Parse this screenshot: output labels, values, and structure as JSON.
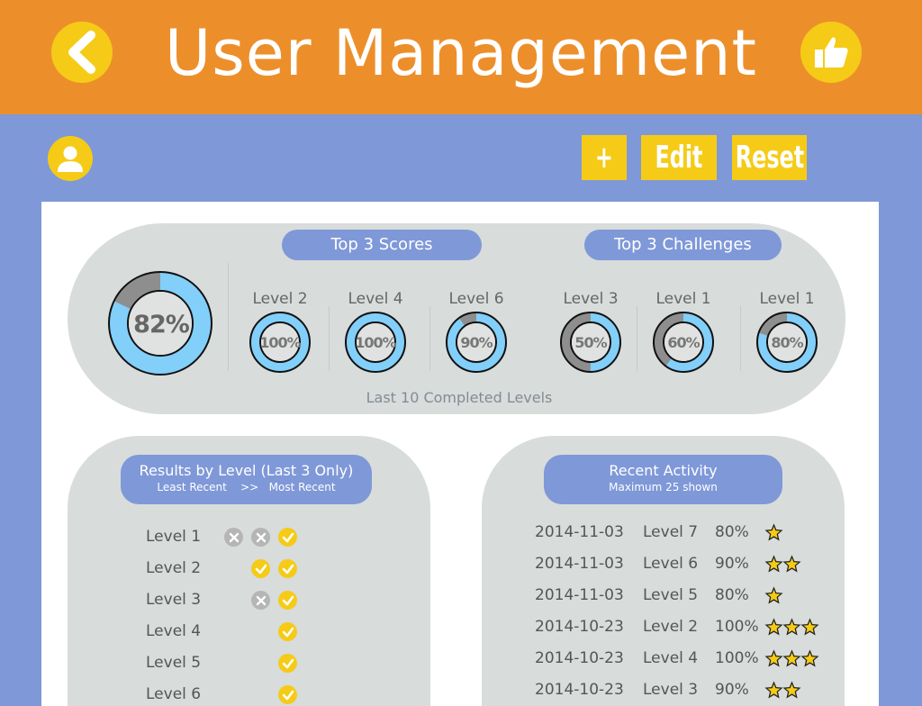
{
  "header": {
    "title": "User Management"
  },
  "toolbar": {
    "add_label": "+",
    "edit_label": "Edit",
    "reset_label": "Reset"
  },
  "summary": {
    "overall": {
      "label": "82%",
      "percent": 82
    },
    "top_scores_title": "Top 3 Scores",
    "top_challenges_title": "Top 3 Challenges",
    "top_scores": [
      {
        "level": "Level 2",
        "label": "100%",
        "percent": 100
      },
      {
        "level": "Level 4",
        "label": "100%",
        "percent": 100
      },
      {
        "level": "Level 6",
        "label": "90%",
        "percent": 90
      }
    ],
    "top_challenges": [
      {
        "level": "Level 3",
        "label": "50%",
        "percent": 50
      },
      {
        "level": "Level 1",
        "label": "60%",
        "percent": 60
      },
      {
        "level": "Level 1",
        "label": "80%",
        "percent": 80
      }
    ],
    "caption": "Last 10 Completed Levels"
  },
  "results": {
    "title": "Results by Level (Last 3 Only)",
    "subtitle": "Least Recent    >>   Most Recent",
    "rows": [
      {
        "level": "Level 1",
        "marks": [
          "fail",
          "fail",
          "pass"
        ]
      },
      {
        "level": "Level 2",
        "marks": [
          "",
          "pass",
          "pass"
        ]
      },
      {
        "level": "Level 3",
        "marks": [
          "",
          "fail",
          "pass"
        ]
      },
      {
        "level": "Level 4",
        "marks": [
          "",
          "",
          "pass"
        ]
      },
      {
        "level": "Level 5",
        "marks": [
          "",
          "",
          "pass"
        ]
      },
      {
        "level": "Level 6",
        "marks": [
          "",
          "",
          "pass"
        ]
      }
    ]
  },
  "activity": {
    "title": "Recent Activity",
    "subtitle": "Maximum 25 shown",
    "rows": [
      {
        "date": "2014-11-03",
        "level": "Level 7",
        "score": "80%",
        "stars": 1
      },
      {
        "date": "2014-11-03",
        "level": "Level 6",
        "score": "90%",
        "stars": 2
      },
      {
        "date": "2014-11-03",
        "level": "Level 5",
        "score": "80%",
        "stars": 1
      },
      {
        "date": "2014-10-23",
        "level": "Level 2",
        "score": "100%",
        "stars": 3
      },
      {
        "date": "2014-10-23",
        "level": "Level 4",
        "score": "100%",
        "stars": 3
      },
      {
        "date": "2014-10-23",
        "level": "Level 3",
        "score": "90%",
        "stars": 2
      }
    ]
  },
  "colors": {
    "header": "#ec8f2b",
    "background": "#7f98d8",
    "accent": "#f5cb17",
    "donut_fill": "#82cffa",
    "donut_remaining": "#8e8e8e",
    "card": "#d8dcdb"
  }
}
